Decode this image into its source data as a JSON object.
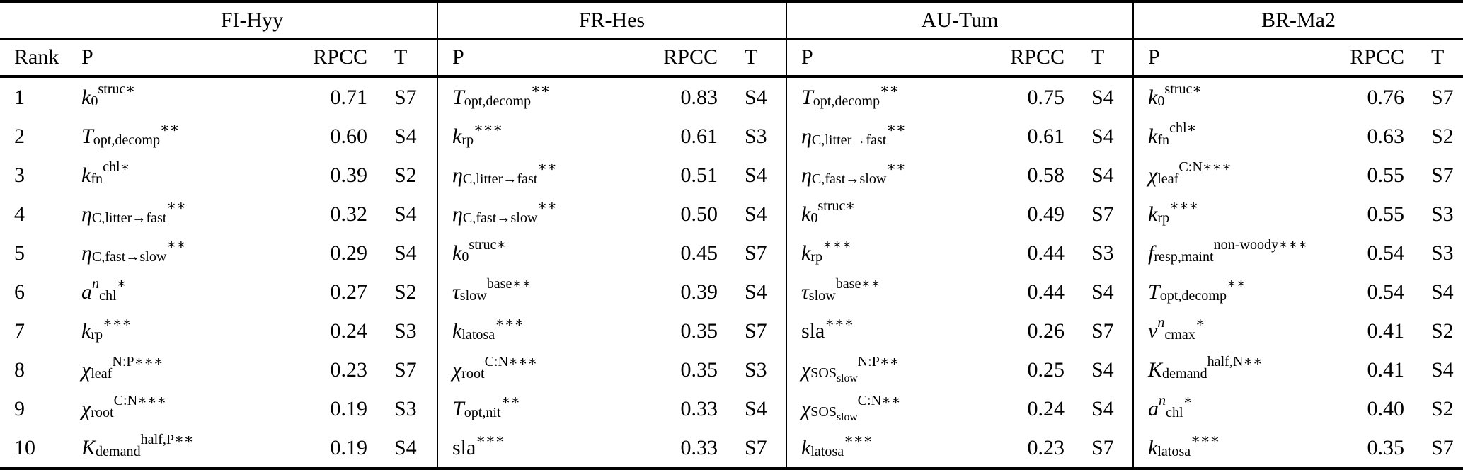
{
  "table": {
    "groups": [
      "FI-Hyy",
      "FR-Hes",
      "AU-Tum",
      "BR-Ma2"
    ],
    "columns": {
      "rank": "Rank",
      "p": "P",
      "rpcc": "RPCC",
      "t": "T"
    },
    "rows": [
      {
        "rank": "1",
        "cells": [
          {
            "p": "<i>k</i><sub>0</sub><sup>struc∗</sup>",
            "rpcc": "0.71",
            "t": "S7"
          },
          {
            "p": "<i>T</i><sub>opt,decomp</sub><sup>∗∗</sup>",
            "rpcc": "0.83",
            "t": "S4"
          },
          {
            "p": "<i>T</i><sub>opt,decomp</sub><sup>∗∗</sup>",
            "rpcc": "0.75",
            "t": "S4"
          },
          {
            "p": "<i>k</i><sub>0</sub><sup>struc∗</sup>",
            "rpcc": "0.76",
            "t": "S7"
          }
        ]
      },
      {
        "rank": "2",
        "cells": [
          {
            "p": "<i>T</i><sub>opt,decomp</sub><sup>∗∗</sup>",
            "rpcc": "0.60",
            "t": "S4"
          },
          {
            "p": "<i>k</i><sub>rp</sub><sup>∗∗∗</sup>",
            "rpcc": "0.61",
            "t": "S3"
          },
          {
            "p": "<i>η</i><sub>C,litter→fast</sub><sup>∗∗</sup>",
            "rpcc": "0.61",
            "t": "S4"
          },
          {
            "p": "<i>k</i><sub>fn</sub><sup>chl∗</sup>",
            "rpcc": "0.63",
            "t": "S2"
          }
        ]
      },
      {
        "rank": "3",
        "cells": [
          {
            "p": "<i>k</i><sub>fn</sub><sup>chl∗</sup>",
            "rpcc": "0.39",
            "t": "S2"
          },
          {
            "p": "<i>η</i><sub>C,litter→fast</sub><sup>∗∗</sup>",
            "rpcc": "0.51",
            "t": "S4"
          },
          {
            "p": "<i>η</i><sub>C,fast→slow</sub><sup>∗∗</sup>",
            "rpcc": "0.58",
            "t": "S4"
          },
          {
            "p": "<i>χ</i><sub>leaf</sub><sup>C:N∗∗∗</sup>",
            "rpcc": "0.55",
            "t": "S7"
          }
        ]
      },
      {
        "rank": "4",
        "cells": [
          {
            "p": "<i>η</i><sub>C,litter→fast</sub><sup>∗∗</sup>",
            "rpcc": "0.32",
            "t": "S4"
          },
          {
            "p": "<i>η</i><sub>C,fast→slow</sub><sup>∗∗</sup>",
            "rpcc": "0.50",
            "t": "S4"
          },
          {
            "p": "<i>k</i><sub>0</sub><sup>struc∗</sup>",
            "rpcc": "0.49",
            "t": "S7"
          },
          {
            "p": "<i>k</i><sub>rp</sub><sup>∗∗∗</sup>",
            "rpcc": "0.55",
            "t": "S3"
          }
        ]
      },
      {
        "rank": "5",
        "cells": [
          {
            "p": "<i>η</i><sub>C,fast→slow</sub><sup>∗∗</sup>",
            "rpcc": "0.29",
            "t": "S4"
          },
          {
            "p": "<i>k</i><sub>0</sub><sup>struc∗</sup>",
            "rpcc": "0.45",
            "t": "S7"
          },
          {
            "p": "<i>k</i><sub>rp</sub><sup>∗∗∗</sup>",
            "rpcc": "0.44",
            "t": "S3"
          },
          {
            "p": "<i>f</i><sub>resp,maint</sub><sup>non-woody∗∗∗</sup>",
            "rpcc": "0.54",
            "t": "S3"
          }
        ]
      },
      {
        "rank": "6",
        "cells": [
          {
            "p": "<i>a</i><sup><i>n</i></sup><sub>chl</sub><sup>∗</sup>",
            "rpcc": "0.27",
            "t": "S2"
          },
          {
            "p": "<i>τ</i><sub>slow</sub><sup>base∗∗</sup>",
            "rpcc": "0.39",
            "t": "S4"
          },
          {
            "p": "<i>τ</i><sub>slow</sub><sup>base∗∗</sup>",
            "rpcc": "0.44",
            "t": "S4"
          },
          {
            "p": "<i>T</i><sub>opt,decomp</sub><sup>∗∗</sup>",
            "rpcc": "0.54",
            "t": "S4"
          }
        ]
      },
      {
        "rank": "7",
        "cells": [
          {
            "p": "<i>k</i><sub>rp</sub><sup>∗∗∗</sup>",
            "rpcc": "0.24",
            "t": "S3"
          },
          {
            "p": "<i>k</i><sub>latosa</sub><sup>∗∗∗</sup>",
            "rpcc": "0.35",
            "t": "S7"
          },
          {
            "p": "sla<sup>∗∗∗</sup>",
            "rpcc": "0.26",
            "t": "S7"
          },
          {
            "p": "<i>v</i><sup><i>n</i></sup><sub>cmax</sub><sup>∗</sup>",
            "rpcc": "0.41",
            "t": "S2"
          }
        ]
      },
      {
        "rank": "8",
        "cells": [
          {
            "p": "<i>χ</i><sub>leaf</sub><sup>N:P∗∗∗</sup>",
            "rpcc": "0.23",
            "t": "S7"
          },
          {
            "p": "<i>χ</i><sub>root</sub><sup>C:N∗∗∗</sup>",
            "rpcc": "0.35",
            "t": "S3"
          },
          {
            "p": "<i>χ</i><sub>SOS<sub>slow</sub></sub><sup>N:P∗∗</sup>",
            "rpcc": "0.25",
            "t": "S4"
          },
          {
            "p": "<i>K</i><sub>demand</sub><sup>half,N∗∗</sup>",
            "rpcc": "0.41",
            "t": "S4"
          }
        ]
      },
      {
        "rank": "9",
        "cells": [
          {
            "p": "<i>χ</i><sub>root</sub><sup>C:N∗∗∗</sup>",
            "rpcc": "0.19",
            "t": "S3"
          },
          {
            "p": "<i>T</i><sub>opt,nit</sub><sup>∗∗</sup>",
            "rpcc": "0.33",
            "t": "S4"
          },
          {
            "p": "<i>χ</i><sub>SOS<sub>slow</sub></sub><sup>C:N∗∗</sup>",
            "rpcc": "0.24",
            "t": "S4"
          },
          {
            "p": "<i>a</i><sup><i>n</i></sup><sub>chl</sub><sup>∗</sup>",
            "rpcc": "0.40",
            "t": "S2"
          }
        ]
      },
      {
        "rank": "10",
        "cells": [
          {
            "p": "<i>K</i><sub>demand</sub><sup>half,P∗∗</sup>",
            "rpcc": "0.19",
            "t": "S4"
          },
          {
            "p": "sla<sup>∗∗∗</sup>",
            "rpcc": "0.33",
            "t": "S7"
          },
          {
            "p": "<i>k</i><sub>latosa</sub><sup>∗∗∗</sup>",
            "rpcc": "0.23",
            "t": "S7"
          },
          {
            "p": "<i>k</i><sub>latosa</sub><sup>∗∗∗</sup>",
            "rpcc": "0.35",
            "t": "S7"
          }
        ]
      }
    ]
  }
}
